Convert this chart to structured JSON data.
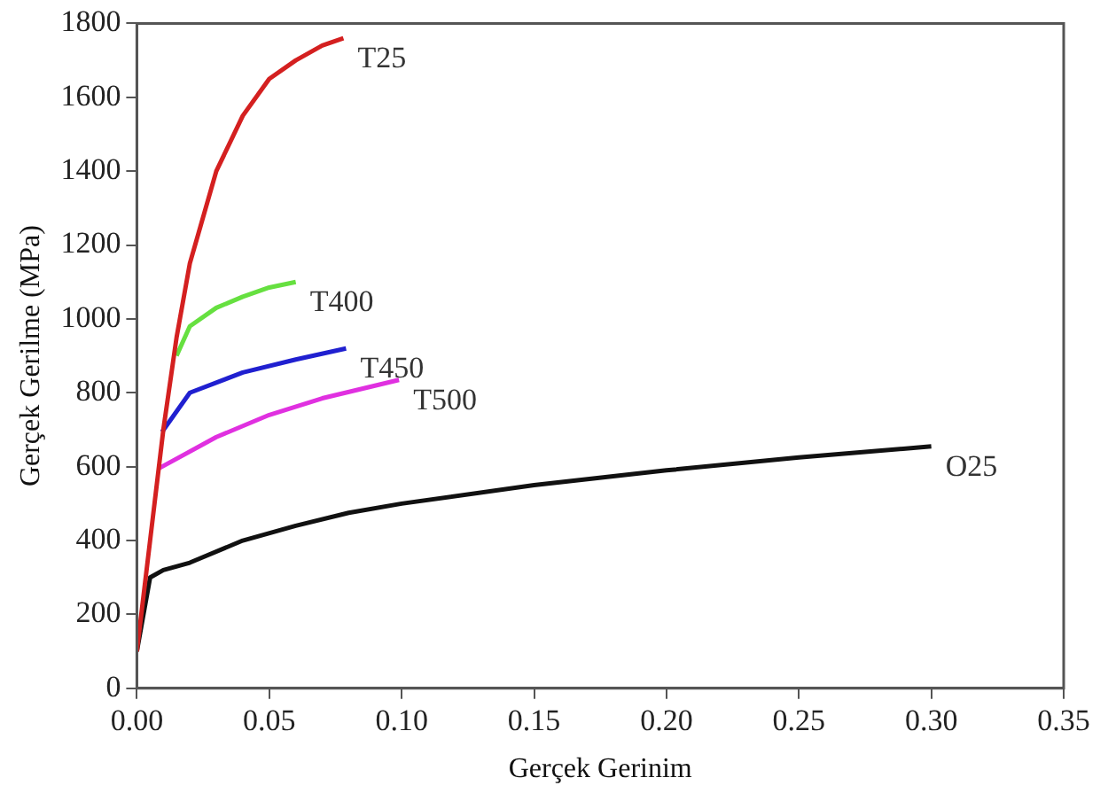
{
  "chart_data": {
    "type": "line",
    "xlabel": "Gerçek Gerinim",
    "ylabel": "Gerçek Gerilme (MPa)",
    "xlim": [
      0,
      0.35
    ],
    "xticks": [
      {
        "value": 0,
        "label": "0.00"
      },
      {
        "value": 0.05,
        "label": "0.05"
      },
      {
        "value": 0.1,
        "label": "0.10"
      },
      {
        "value": 0.15,
        "label": "0.15"
      },
      {
        "value": 0.2,
        "label": "0.20"
      },
      {
        "value": 0.25,
        "label": "0.25"
      },
      {
        "value": 0.3,
        "label": "0.30"
      },
      {
        "value": 0.35,
        "label": "0.35"
      }
    ],
    "ylim": [
      0,
      1800
    ],
    "yticks": [
      0,
      200,
      400,
      600,
      800,
      1000,
      1200,
      1400,
      1600,
      1800
    ],
    "grid": false,
    "legend": false,
    "marker": "none",
    "line_style": "solid",
    "series": [
      {
        "name": "T25",
        "color": "#d42020",
        "x": [
          0,
          0.005,
          0.01,
          0.015,
          0.02,
          0.03,
          0.04,
          0.05,
          0.06,
          0.07,
          0.078
        ],
        "values": [
          100,
          400,
          700,
          950,
          1150,
          1400,
          1550,
          1650,
          1700,
          1740,
          1760
        ]
      },
      {
        "name": "T400",
        "color": "#66e040",
        "x": [
          0.015,
          0.02,
          0.03,
          0.04,
          0.05,
          0.06
        ],
        "values": [
          900,
          980,
          1030,
          1060,
          1085,
          1100
        ]
      },
      {
        "name": "T450",
        "color": "#2020d0",
        "x": [
          0.0095,
          0.02,
          0.04,
          0.06,
          0.079
        ],
        "values": [
          694,
          800,
          855,
          890,
          920
        ]
      },
      {
        "name": "T500",
        "color": "#e030e0",
        "x": [
          0.008,
          0.03,
          0.05,
          0.07,
          0.099
        ],
        "values": [
          594,
          680,
          740,
          785,
          835
        ]
      },
      {
        "name": "O25",
        "color": "#111111",
        "x": [
          0,
          0.005,
          0.01,
          0.02,
          0.04,
          0.06,
          0.08,
          0.1,
          0.15,
          0.2,
          0.25,
          0.3
        ],
        "values": [
          100,
          300,
          320,
          340,
          400,
          440,
          475,
          500,
          550,
          590,
          625,
          655
        ]
      }
    ]
  }
}
